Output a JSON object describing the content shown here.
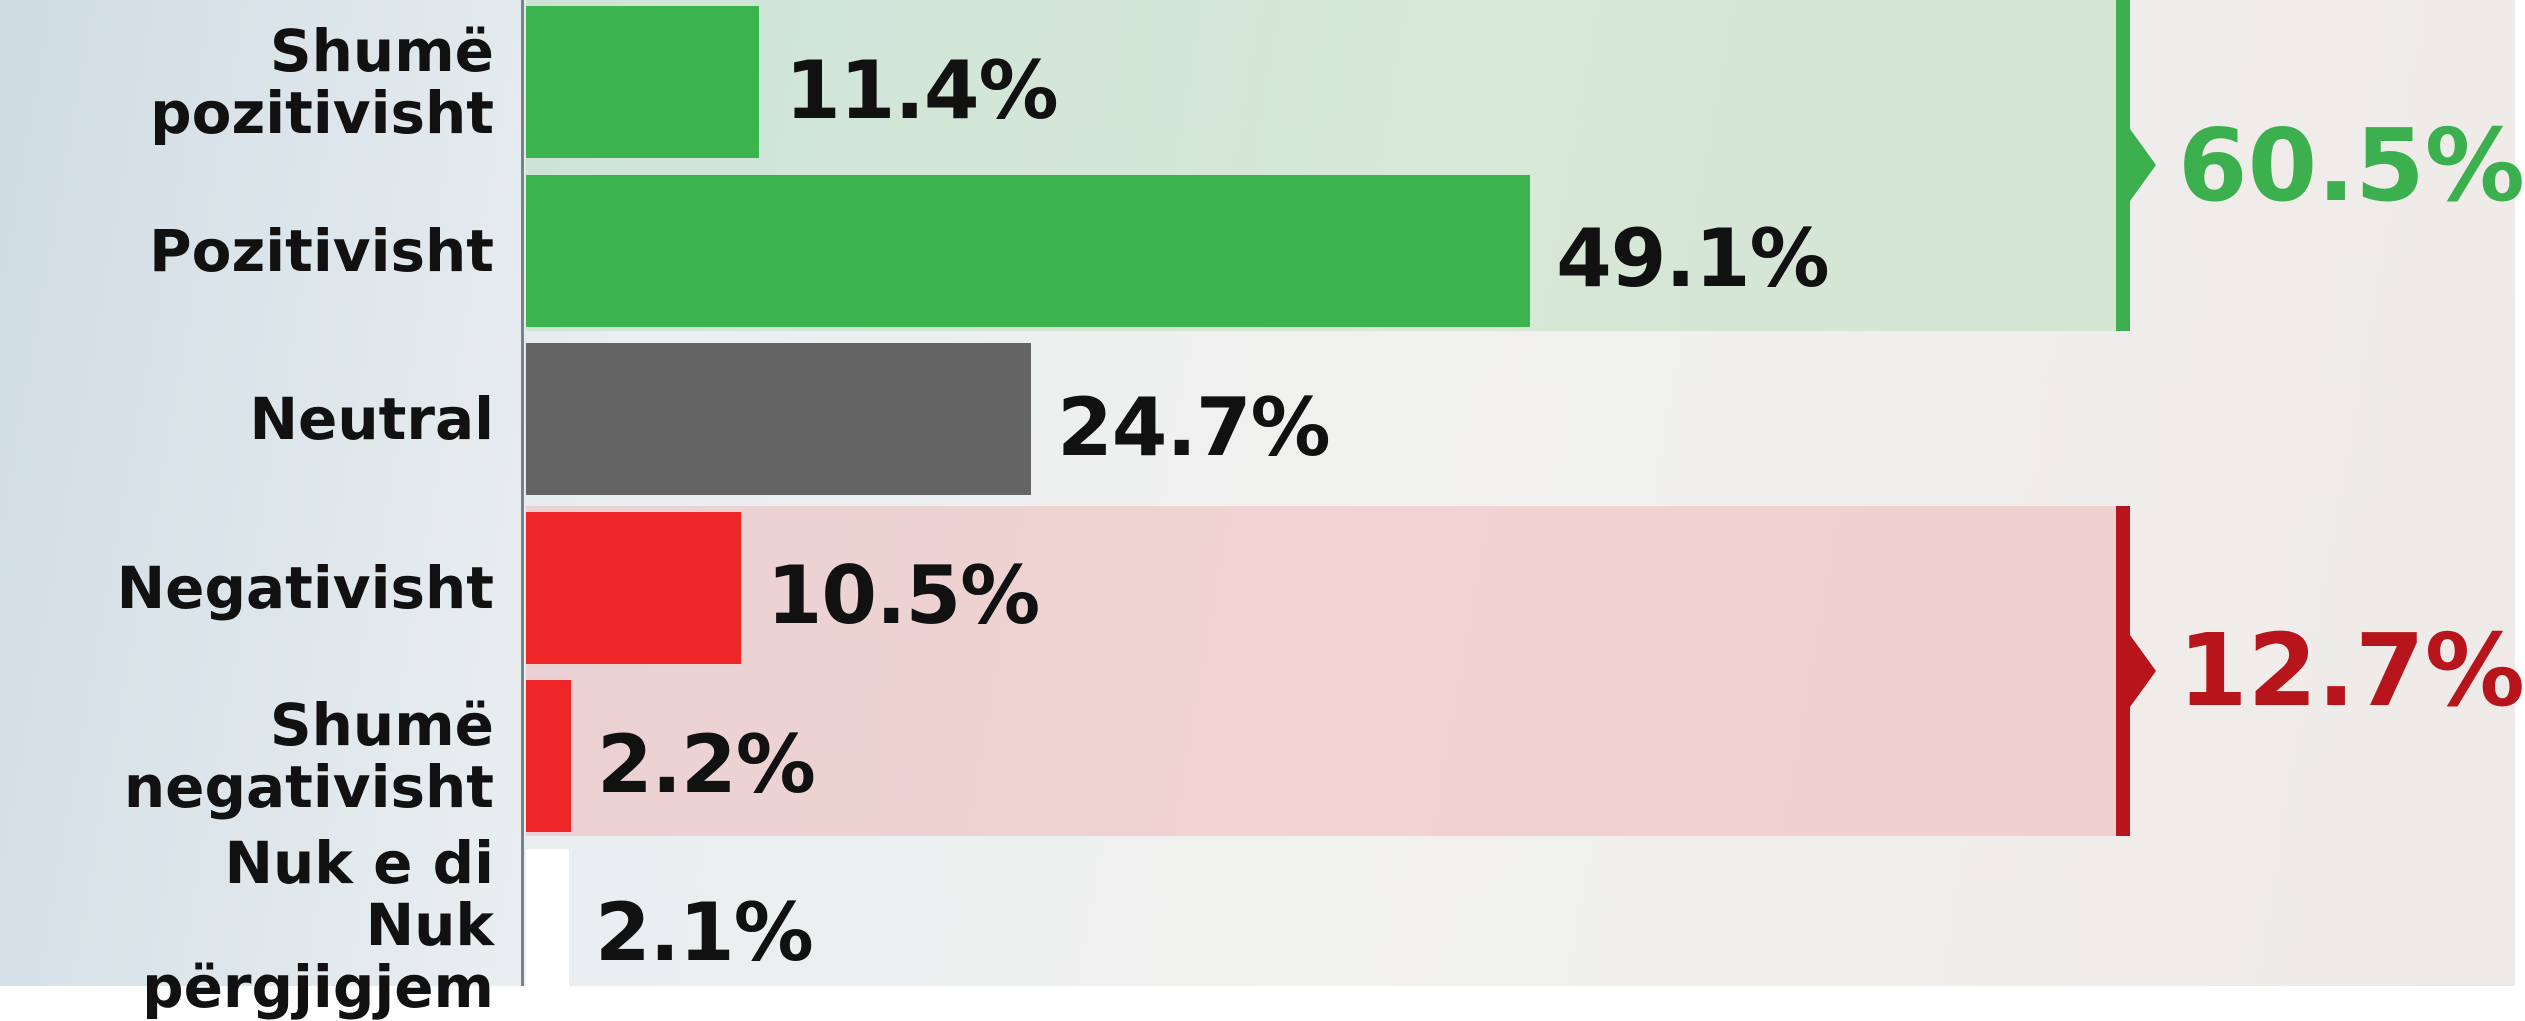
{
  "chart_data": {
    "type": "bar",
    "orientation": "horizontal",
    "categories": [
      "Shumë\npozitivisht",
      "Pozitivisht",
      "Neutral",
      "Negativisht",
      "Shumë\nnegativisht",
      "Nuk e di\nNuk përgjigjem"
    ],
    "values": [
      11.4,
      49.1,
      24.7,
      10.5,
      2.2,
      2.1
    ],
    "value_labels": [
      "11.4%",
      "49.1%",
      "24.7%",
      "10.5%",
      "2.2%",
      "2.1%"
    ],
    "colors": [
      "#3bb34f",
      "#3bb34f",
      "#646464",
      "#ee2628",
      "#ee2628",
      "#ffffff"
    ],
    "annotations": [
      {
        "value": 60.5,
        "label": "60.5%",
        "color": "#3cb04f",
        "band": "rgba(120,200,130,0.22)",
        "span": [
          0,
          1
        ]
      },
      {
        "value": 12.7,
        "label": "12.7%",
        "color": "#b8141b",
        "band": "rgba(240,150,150,0.32)",
        "span": [
          3,
          4
        ]
      }
    ]
  }
}
